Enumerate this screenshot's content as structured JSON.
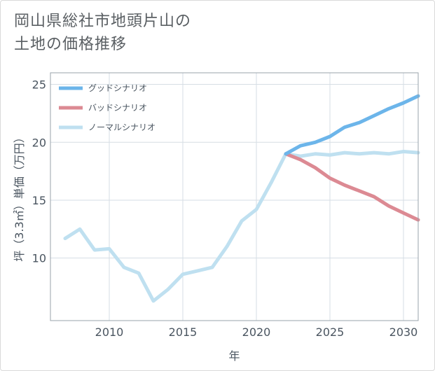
{
  "title": "岡山県総社市地頭片山の\n土地の価格推移",
  "chart_data": {
    "type": "line",
    "xlabel": "年",
    "ylabel": "坪（3.3㎡）単価（万円）",
    "xlim": [
      2006,
      2031
    ],
    "ylim": [
      4.6,
      26
    ],
    "x_ticks": [
      2010,
      2015,
      2020,
      2025,
      2030
    ],
    "y_ticks": [
      10,
      15,
      20,
      25
    ],
    "grid": true,
    "legend_position": "top-left",
    "series": [
      {
        "name": "グッドシナリオ",
        "color": "#6cb5ea",
        "x": [
          2022,
          2023,
          2024,
          2025,
          2026,
          2027,
          2028,
          2029,
          2030,
          2031
        ],
        "y": [
          19.0,
          19.7,
          20.0,
          20.5,
          21.3,
          21.7,
          22.3,
          22.9,
          23.4,
          24.0
        ]
      },
      {
        "name": "バッドシナリオ",
        "color": "#dc8a93",
        "x": [
          2022,
          2023,
          2024,
          2025,
          2026,
          2027,
          2028,
          2029,
          2030,
          2031
        ],
        "y": [
          19.0,
          18.5,
          17.8,
          16.9,
          16.3,
          15.8,
          15.3,
          14.5,
          13.9,
          13.3
        ]
      },
      {
        "name": "ノーマルシナリオ",
        "color": "#bfe0f0",
        "x": [
          2007,
          2008,
          2009,
          2010,
          2011,
          2012,
          2013,
          2014,
          2015,
          2016,
          2017,
          2018,
          2019,
          2020,
          2021,
          2022,
          2023,
          2024,
          2025,
          2026,
          2027,
          2028,
          2029,
          2030,
          2031
        ],
        "y": [
          11.7,
          12.5,
          10.7,
          10.8,
          9.2,
          8.7,
          6.3,
          7.3,
          8.6,
          8.9,
          9.2,
          11.0,
          13.2,
          14.2,
          16.5,
          19.0,
          18.8,
          19.0,
          18.9,
          19.1,
          19.0,
          19.1,
          19.0,
          19.2,
          19.1
        ]
      }
    ]
  }
}
